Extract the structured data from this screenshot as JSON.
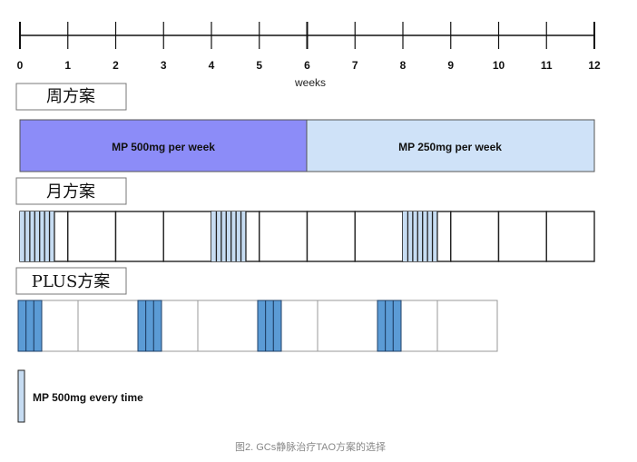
{
  "axis": {
    "ticks": [
      "0",
      "1",
      "2",
      "3",
      "4",
      "5",
      "6",
      "7",
      "8",
      "9",
      "10",
      "11",
      "12"
    ],
    "bold_ticks": [
      "0",
      "6",
      "12"
    ],
    "unit_label": "weeks"
  },
  "weekly": {
    "title": "周方案",
    "phase1_label": "MP 500mg per week",
    "phase2_label": "MP 250mg per week",
    "phase1_color": "#8c8cf8",
    "phase2_color": "#cfe2f8"
  },
  "monthly": {
    "title": "月方案",
    "dose_color": "#c6dcf2"
  },
  "plus": {
    "title": "PLUS方案",
    "dose_color": "#5b9bd5"
  },
  "legend": {
    "text": "MP 500mg every time",
    "swatch_color": "#c6dcf2"
  },
  "caption": "图2. GCs静脉治疗TAO方案的选择"
}
